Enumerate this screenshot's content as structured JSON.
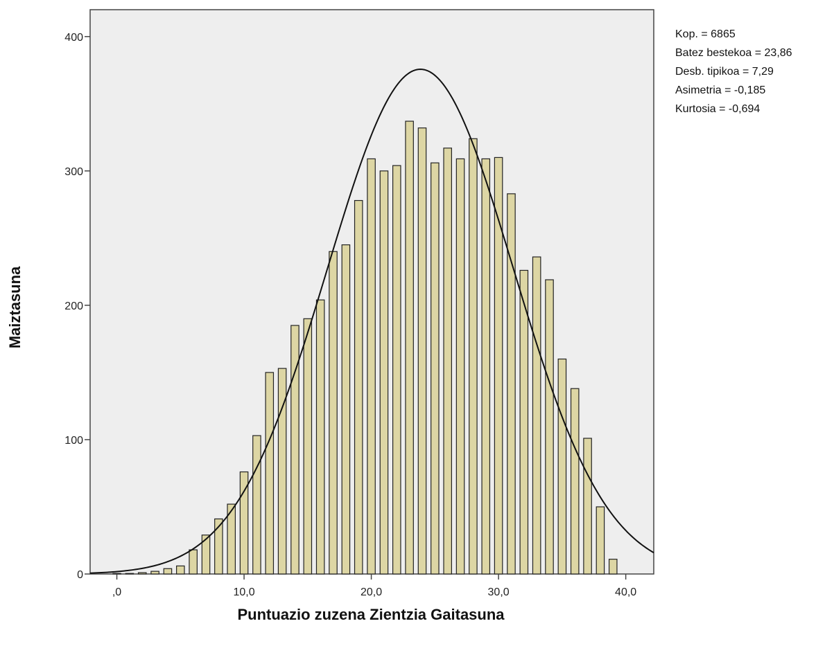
{
  "chart_data": {
    "type": "bar",
    "xlabel": "Puntuazio zuzena Zientzia Gaitasuna",
    "ylabel": "Maiztasuna",
    "xlim": [
      -2.1,
      42.2
    ],
    "ylim": [
      0,
      420
    ],
    "x_ticks": [
      0,
      10,
      20,
      30,
      40
    ],
    "x_tick_labels": [
      ",0",
      "10,0",
      "20,0",
      "30,0",
      "40,0"
    ],
    "y_ticks": [
      0,
      100,
      200,
      300,
      400
    ],
    "y_tick_labels": [
      "0",
      "100",
      "200",
      "300",
      "400"
    ],
    "bar_color": "#ddd6a4",
    "plot_background": "#eeeeee",
    "grid": false,
    "stats": [
      "Kop. = 6865",
      "Batez bestekoa = 23,86",
      "Desb. tipikoa = 7,29",
      "Asimetria = -0,185",
      "Kurtosia = -0,694"
    ],
    "normal_curve": {
      "mean": 23.86,
      "sd": 7.29,
      "n": 6865
    },
    "bars": [
      {
        "x": 0,
        "y": 0
      },
      {
        "x": 1,
        "y": 0
      },
      {
        "x": 2,
        "y": 1
      },
      {
        "x": 3,
        "y": 2
      },
      {
        "x": 4,
        "y": 4
      },
      {
        "x": 5,
        "y": 6
      },
      {
        "x": 6,
        "y": 18
      },
      {
        "x": 7,
        "y": 29
      },
      {
        "x": 8,
        "y": 41
      },
      {
        "x": 9,
        "y": 52
      },
      {
        "x": 10,
        "y": 76
      },
      {
        "x": 11,
        "y": 103
      },
      {
        "x": 12,
        "y": 150
      },
      {
        "x": 13,
        "y": 153
      },
      {
        "x": 14,
        "y": 185
      },
      {
        "x": 15,
        "y": 190
      },
      {
        "x": 16,
        "y": 204
      },
      {
        "x": 17,
        "y": 240
      },
      {
        "x": 18,
        "y": 245
      },
      {
        "x": 19,
        "y": 278
      },
      {
        "x": 20,
        "y": 309
      },
      {
        "x": 21,
        "y": 300
      },
      {
        "x": 22,
        "y": 304
      },
      {
        "x": 23,
        "y": 337
      },
      {
        "x": 24,
        "y": 332
      },
      {
        "x": 25,
        "y": 306
      },
      {
        "x": 26,
        "y": 317
      },
      {
        "x": 27,
        "y": 309
      },
      {
        "x": 28,
        "y": 324
      },
      {
        "x": 29,
        "y": 309
      },
      {
        "x": 30,
        "y": 310
      },
      {
        "x": 31,
        "y": 283
      },
      {
        "x": 32,
        "y": 226
      },
      {
        "x": 33,
        "y": 236
      },
      {
        "x": 34,
        "y": 219
      },
      {
        "x": 35,
        "y": 160
      },
      {
        "x": 36,
        "y": 138
      },
      {
        "x": 37,
        "y": 101
      },
      {
        "x": 38,
        "y": 50
      },
      {
        "x": 39,
        "y": 11
      }
    ]
  }
}
